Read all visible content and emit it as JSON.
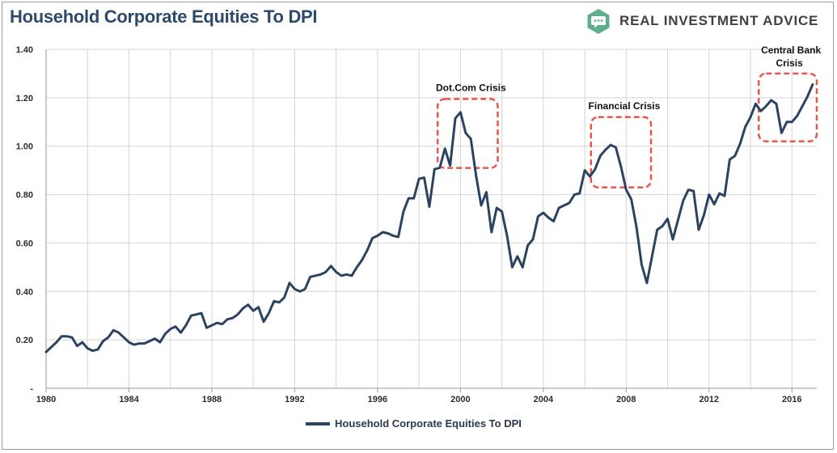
{
  "header": {
    "title": "Household Corporate Equities To DPI",
    "brand": "REAL INVESTMENT ADVICE"
  },
  "colors": {
    "line": "#2b4362",
    "annotation_box": "#e4574c",
    "grid": "#d4d4d4",
    "title": "#2e4a6a",
    "brand_logo": "#5fae8c"
  },
  "chart_data": {
    "type": "line",
    "title": "Household Corporate Equities To DPI",
    "xlabel": "",
    "ylabel": "",
    "xlim": [
      1980,
      2017.2
    ],
    "ylim": [
      0,
      1.4
    ],
    "grid": true,
    "legend_position": "bottom",
    "x_ticks": [
      "1980",
      "1984",
      "1988",
      "1992",
      "1996",
      "2000",
      "2004",
      "2008",
      "2012",
      "2016"
    ],
    "y_ticks": [
      "-",
      "0.20",
      "0.40",
      "0.60",
      "0.80",
      "1.00",
      "1.20",
      "1.40"
    ],
    "series": [
      {
        "name": "Household Corporate Equities To DPI",
        "x": [
          1980.0,
          1980.25,
          1980.5,
          1980.75,
          1981.0,
          1981.25,
          1981.5,
          1981.75,
          1982.0,
          1982.25,
          1982.5,
          1982.75,
          1983.0,
          1983.25,
          1983.5,
          1983.75,
          1984.0,
          1984.25,
          1984.5,
          1984.75,
          1985.0,
          1985.25,
          1985.5,
          1985.75,
          1986.0,
          1986.25,
          1986.5,
          1986.75,
          1987.0,
          1987.25,
          1987.5,
          1987.75,
          1988.0,
          1988.25,
          1988.5,
          1988.75,
          1989.0,
          1989.25,
          1989.5,
          1989.75,
          1990.0,
          1990.25,
          1990.5,
          1990.75,
          1991.0,
          1991.25,
          1991.5,
          1991.75,
          1992.0,
          1992.25,
          1992.5,
          1992.75,
          1993.0,
          1993.25,
          1993.5,
          1993.75,
          1994.0,
          1994.25,
          1994.5,
          1994.75,
          1995.0,
          1995.25,
          1995.5,
          1995.75,
          1996.0,
          1996.25,
          1996.5,
          1996.75,
          1997.0,
          1997.25,
          1997.5,
          1997.75,
          1998.0,
          1998.25,
          1998.5,
          1998.75,
          1999.0,
          1999.25,
          1999.5,
          1999.75,
          2000.0,
          2000.25,
          2000.5,
          2000.75,
          2001.0,
          2001.25,
          2001.5,
          2001.75,
          2002.0,
          2002.25,
          2002.5,
          2002.75,
          2003.0,
          2003.25,
          2003.5,
          2003.75,
          2004.0,
          2004.25,
          2004.5,
          2004.75,
          2005.0,
          2005.25,
          2005.5,
          2005.75,
          2006.0,
          2006.25,
          2006.5,
          2006.75,
          2007.0,
          2007.25,
          2007.5,
          2007.75,
          2008.0,
          2008.25,
          2008.5,
          2008.75,
          2009.0,
          2009.25,
          2009.5,
          2009.75,
          2010.0,
          2010.25,
          2010.5,
          2010.75,
          2011.0,
          2011.25,
          2011.5,
          2011.75,
          2012.0,
          2012.25,
          2012.5,
          2012.75,
          2013.0,
          2013.25,
          2013.5,
          2013.75,
          2014.0,
          2014.25,
          2014.5,
          2014.75,
          2015.0,
          2015.25,
          2015.5,
          2015.75,
          2016.0,
          2016.25,
          2016.5,
          2016.75,
          2017.0
        ],
        "values": [
          0.15,
          0.17,
          0.19,
          0.215,
          0.215,
          0.21,
          0.175,
          0.19,
          0.165,
          0.155,
          0.16,
          0.195,
          0.21,
          0.24,
          0.23,
          0.21,
          0.19,
          0.18,
          0.185,
          0.185,
          0.195,
          0.205,
          0.19,
          0.225,
          0.245,
          0.255,
          0.23,
          0.26,
          0.3,
          0.305,
          0.31,
          0.25,
          0.26,
          0.27,
          0.265,
          0.285,
          0.29,
          0.305,
          0.33,
          0.345,
          0.32,
          0.335,
          0.275,
          0.31,
          0.36,
          0.355,
          0.375,
          0.435,
          0.41,
          0.4,
          0.41,
          0.46,
          0.465,
          0.47,
          0.48,
          0.505,
          0.48,
          0.465,
          0.47,
          0.465,
          0.5,
          0.53,
          0.57,
          0.62,
          0.63,
          0.645,
          0.64,
          0.63,
          0.625,
          0.73,
          0.785,
          0.785,
          0.865,
          0.87,
          0.75,
          0.905,
          0.91,
          0.99,
          0.92,
          1.115,
          1.14,
          1.055,
          1.03,
          0.88,
          0.755,
          0.81,
          0.645,
          0.745,
          0.73,
          0.63,
          0.5,
          0.545,
          0.5,
          0.59,
          0.615,
          0.71,
          0.725,
          0.705,
          0.69,
          0.745,
          0.755,
          0.765,
          0.8,
          0.805,
          0.9,
          0.875,
          0.905,
          0.96,
          0.985,
          1.005,
          0.995,
          0.915,
          0.82,
          0.78,
          0.665,
          0.51,
          0.435,
          0.545,
          0.655,
          0.67,
          0.7,
          0.615,
          0.695,
          0.775,
          0.82,
          0.815,
          0.655,
          0.715,
          0.8,
          0.76,
          0.805,
          0.795,
          0.945,
          0.96,
          1.01,
          1.08,
          1.12,
          1.175,
          1.145,
          1.165,
          1.19,
          1.175,
          1.055,
          1.1,
          1.1,
          1.125,
          1.165,
          1.205,
          1.255
        ]
      }
    ],
    "annotations": [
      {
        "label": "Dot.Com Crisis",
        "x_range": [
          1998.9,
          2001.8
        ],
        "y_range": [
          0.91,
          1.195
        ]
      },
      {
        "label": "Financial Crisis",
        "x_range": [
          2006.3,
          2009.2
        ],
        "y_range": [
          0.83,
          1.12
        ]
      },
      {
        "label": "Central Bank Crisis",
        "x_range": [
          2014.4,
          2017.2
        ],
        "y_range": [
          1.02,
          1.3
        ]
      }
    ]
  }
}
